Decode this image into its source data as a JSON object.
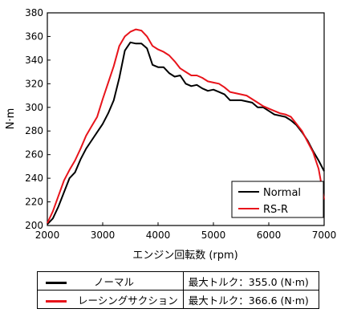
{
  "chart_data": {
    "type": "line",
    "xlabel": "エンジン回転数 (rpm)",
    "ylabel": "N·m",
    "xlim": [
      2000,
      7000
    ],
    "ylim": [
      200,
      380
    ],
    "xticks": [
      2000,
      3000,
      4000,
      5000,
      6000,
      7000
    ],
    "yticks": [
      200,
      220,
      240,
      260,
      280,
      300,
      320,
      340,
      360,
      380
    ],
    "grid": false,
    "legend_position": "bottom-right",
    "series": [
      {
        "name": "Normal",
        "color": "#000000",
        "x": [
          2000,
          2100,
          2200,
          2300,
          2400,
          2500,
          2600,
          2700,
          2800,
          2900,
          3000,
          3100,
          3200,
          3300,
          3400,
          3500,
          3600,
          3700,
          3800,
          3900,
          4000,
          4100,
          4200,
          4300,
          4400,
          4500,
          4600,
          4700,
          4800,
          4900,
          5000,
          5100,
          5200,
          5300,
          5400,
          5500,
          5600,
          5700,
          5800,
          5900,
          6000,
          6100,
          6200,
          6300,
          6400,
          6500,
          6600,
          6700,
          6800,
          6900,
          7000
        ],
        "y": [
          201,
          206,
          216,
          228,
          240,
          245,
          256,
          265,
          272,
          279,
          286,
          295,
          306,
          325,
          348,
          355,
          354,
          354,
          350,
          336,
          334,
          334,
          329,
          326,
          327,
          320,
          318,
          319,
          316,
          314,
          315,
          313,
          311,
          306,
          306,
          306,
          305,
          304,
          300,
          300,
          297,
          294,
          293,
          292,
          289,
          285,
          279,
          272,
          263,
          255,
          246
        ],
        "annotation_label": "ノーマル",
        "max_torque_text": "最大トルク：355.0 (N·m)"
      },
      {
        "name": "RS-R",
        "color": "#e8141b",
        "x": [
          2000,
          2100,
          2200,
          2300,
          2400,
          2500,
          2600,
          2700,
          2800,
          2900,
          3000,
          3100,
          3200,
          3300,
          3400,
          3500,
          3600,
          3700,
          3800,
          3900,
          4000,
          4100,
          4200,
          4300,
          4400,
          4500,
          4600,
          4700,
          4800,
          4900,
          5000,
          5100,
          5200,
          5300,
          5400,
          5500,
          5600,
          5700,
          5800,
          5900,
          6000,
          6100,
          6200,
          6300,
          6400,
          6500,
          6600,
          6700,
          6800,
          6900,
          7000
        ],
        "y": [
          202,
          212,
          225,
          238,
          247,
          255,
          265,
          276,
          284,
          292,
          307,
          321,
          335,
          352,
          360,
          364,
          366,
          365,
          360,
          352,
          349,
          347,
          344,
          339,
          333,
          330,
          327,
          327,
          325,
          322,
          321,
          320,
          317,
          313,
          312,
          311,
          310,
          307,
          304,
          301,
          299,
          297,
          295,
          294,
          292,
          286,
          280,
          271,
          262,
          248,
          222
        ],
        "annotation_label": "レーシングサクション",
        "max_torque_text": "最大トルク：366.6 (N·m)"
      }
    ]
  }
}
